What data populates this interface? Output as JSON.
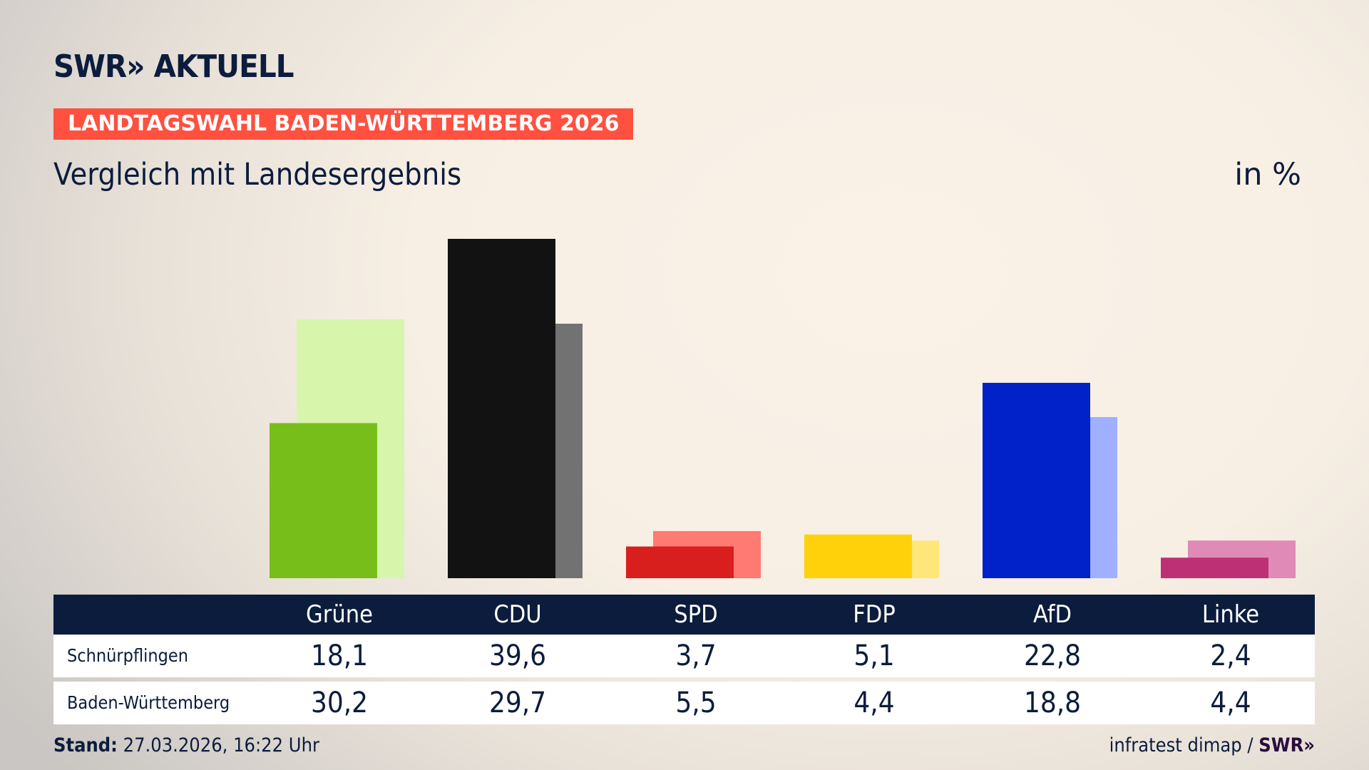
{
  "header": {
    "logo": "SWR» AKTUELL",
    "banner": "LANDTAGSWAHL BADEN-WÜRTTEMBERG 2026",
    "subtitle": "Vergleich mit Landesergebnis",
    "unit": "in %"
  },
  "colors": {
    "navy": "#0c1c3c",
    "banner": "#ff5040"
  },
  "chart_data": {
    "type": "bar",
    "categories": [
      "Grüne",
      "CDU",
      "SPD",
      "FDP",
      "AfD",
      "Linke"
    ],
    "series": [
      {
        "name": "Schnürpflingen",
        "values": [
          18.1,
          39.6,
          3.7,
          5.1,
          22.8,
          2.4
        ],
        "colors": [
          "#78be1a",
          "#121212",
          "#d91e1e",
          "#ffd10a",
          "#0022c8",
          "#be3075"
        ]
      },
      {
        "name": "Baden-Württemberg",
        "values": [
          30.2,
          29.7,
          5.5,
          4.4,
          18.8,
          4.4
        ],
        "colors": [
          "#d7f5ab",
          "#727272",
          "#ff7a72",
          "#ffe67a",
          "#9eb0ff",
          "#e08ab8"
        ]
      }
    ],
    "ylim": [
      0,
      40
    ],
    "grid": false
  },
  "footer": {
    "stand_label": "Stand:",
    "stand_value": "27.03.2026, 16:22 Uhr",
    "source": "infratest dimap /",
    "source_logo": "SWR»"
  }
}
